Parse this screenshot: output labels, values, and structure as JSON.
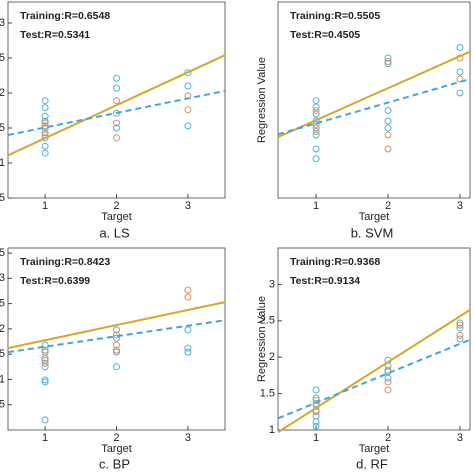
{
  "chart_data": [
    {
      "type": "scatter",
      "title": "a. LS",
      "xlabel": "Target",
      "xlim": [
        0.48,
        3.52
      ],
      "ylim": [
        0.5,
        3.3
      ],
      "xticks": [
        1,
        2,
        3
      ],
      "yticks": [
        {
          "value": 0.5,
          "label": "5"
        },
        1,
        {
          "value": 1.5,
          "label": "5"
        },
        2,
        {
          "value": 2.5,
          "label": "5"
        },
        3
      ],
      "annotations": [
        {
          "text": "Training:R=0.6548",
          "color": "#c9a030"
        },
        {
          "text": "Test:R=0.5341",
          "color": "#1f3a6e"
        }
      ],
      "series": [
        {
          "color": "#4db3db",
          "x": [
            1,
            1,
            1,
            1,
            1,
            1,
            1,
            1,
            1,
            2,
            2,
            2,
            2,
            3,
            3,
            3
          ],
          "values": [
            1.89,
            1.79,
            1.67,
            1.6,
            1.53,
            1.43,
            1.36,
            1.24,
            1.14,
            2.21,
            2.07,
            1.71,
            1.5,
            2.29,
            2.1,
            1.53
          ]
        },
        {
          "color": "#e58c5a",
          "x": [
            1,
            1,
            1,
            2,
            2,
            2,
            3,
            3
          ],
          "values": [
            1.57,
            1.5,
            1.4,
            1.89,
            1.57,
            1.36,
            1.96,
            1.76
          ]
        },
        {
          "color": "#d4a82a",
          "line": true,
          "dashed": false,
          "x": [
            0.48,
            3.52
          ],
          "values": [
            1.11,
            2.54
          ]
        },
        {
          "color": "#3fa7dc",
          "line": true,
          "dashed": true,
          "x": [
            0.48,
            3.52
          ],
          "values": [
            1.4,
            2.03
          ]
        }
      ]
    },
    {
      "type": "scatter",
      "title": "b. SVM",
      "xlabel": "Target",
      "ylabel": "Regression Value",
      "xlim": [
        0.47,
        3.14
      ],
      "ylim": [
        0.5,
        3.3
      ],
      "xticks": [
        1,
        2,
        3
      ],
      "annotations": [
        {
          "text": "Training:R=0.5505",
          "color": "#c9a030"
        },
        {
          "text": "Test:R=0.4505",
          "color": "#1f3a6e"
        }
      ],
      "series": [
        {
          "color": "#4db3db",
          "x": [
            1,
            1,
            1,
            1,
            1,
            1,
            1,
            1,
            2,
            2,
            2,
            2,
            2,
            3,
            3,
            3
          ],
          "values": [
            1.89,
            1.8,
            1.7,
            1.6,
            1.5,
            1.4,
            1.2,
            1.06,
            2.5,
            2.42,
            1.75,
            1.6,
            1.5,
            2.65,
            2.3,
            2.0
          ]
        },
        {
          "color": "#e58c5a",
          "x": [
            1,
            1,
            1,
            2,
            2,
            2,
            3,
            3
          ],
          "values": [
            1.75,
            1.55,
            1.45,
            2.45,
            1.4,
            1.2,
            2.5,
            2.2
          ]
        },
        {
          "color": "#d4a82a",
          "line": true,
          "dashed": false,
          "x": [
            0.47,
            3.14
          ],
          "values": [
            1.37,
            2.59
          ]
        },
        {
          "color": "#3fa7dc",
          "line": true,
          "dashed": true,
          "x": [
            0.47,
            3.14
          ],
          "values": [
            1.41,
            2.2
          ]
        }
      ]
    },
    {
      "type": "scatter",
      "title": "c. BP",
      "xlabel": "Target",
      "xlim": [
        0.48,
        3.52
      ],
      "ylim": [
        0,
        3.6
      ],
      "xticks": [
        1,
        2,
        3
      ],
      "yticks": [
        {
          "value": 0.5,
          "label": "5"
        },
        1,
        {
          "value": 1.5,
          "label": "5"
        },
        2,
        {
          "value": 2.5,
          "label": "5"
        },
        3,
        {
          "value": 3.5,
          "label": "5"
        }
      ],
      "annotations": [
        {
          "text": "Training:R=0.8423",
          "color": "#c9a030"
        },
        {
          "text": "Test:R=0.6399",
          "color": "#1f3a6e"
        }
      ],
      "series": [
        {
          "color": "#4db3db",
          "x": [
            1,
            1,
            1,
            1,
            1,
            1,
            1,
            2,
            2,
            2,
            2,
            3,
            3,
            3
          ],
          "values": [
            1.68,
            1.54,
            1.38,
            1.25,
            0.99,
            0.95,
            0.2,
            1.98,
            1.82,
            1.54,
            1.25,
            1.98,
            1.62,
            1.54
          ]
        },
        {
          "color": "#e58c5a",
          "x": [
            1,
            1,
            1,
            2,
            2,
            2,
            3,
            3
          ],
          "values": [
            1.58,
            1.42,
            1.32,
            1.88,
            1.68,
            1.58,
            2.77,
            2.63
          ]
        },
        {
          "color": "#d4a82a",
          "line": true,
          "dashed": false,
          "x": [
            0.48,
            3.52
          ],
          "values": [
            1.62,
            2.53
          ]
        },
        {
          "color": "#3fa7dc",
          "line": true,
          "dashed": true,
          "x": [
            0.48,
            3.52
          ],
          "values": [
            1.54,
            2.17
          ]
        }
      ]
    },
    {
      "type": "scatter",
      "title": "d. RF",
      "xlabel": "Target",
      "ylabel": "Regression Value",
      "xlim": [
        0.47,
        3.14
      ],
      "ylim": [
        1,
        3.5
      ],
      "xticks": [
        1,
        2,
        3
      ],
      "yticks": [
        1,
        1.5,
        2,
        2.5,
        3
      ],
      "annotations": [
        {
          "text": "Training:R=0.9368",
          "color": "#c9a030"
        },
        {
          "text": "Test:R=0.9134",
          "color": "#1f3a6e"
        }
      ],
      "series": [
        {
          "color": "#4db3db",
          "x": [
            1,
            1,
            1,
            1,
            1,
            1,
            1,
            2,
            2,
            2,
            2,
            3,
            3,
            3
          ],
          "values": [
            1.55,
            1.44,
            1.36,
            1.27,
            1.19,
            1.11,
            1.05,
            1.96,
            1.88,
            1.8,
            1.71,
            2.47,
            2.4,
            2.25
          ]
        },
        {
          "color": "#e58c5a",
          "x": [
            1,
            1,
            1,
            2,
            2,
            2,
            3,
            3
          ],
          "values": [
            1.41,
            1.33,
            1.25,
            1.82,
            1.66,
            1.55,
            2.44,
            2.3
          ]
        },
        {
          "color": "#d4a82a",
          "line": true,
          "dashed": false,
          "x": [
            0.47,
            3.14
          ],
          "values": [
            0.97,
            2.65
          ]
        },
        {
          "color": "#3fa7dc",
          "line": true,
          "dashed": true,
          "x": [
            0.47,
            3.14
          ],
          "values": [
            1.16,
            2.24
          ]
        }
      ]
    }
  ]
}
